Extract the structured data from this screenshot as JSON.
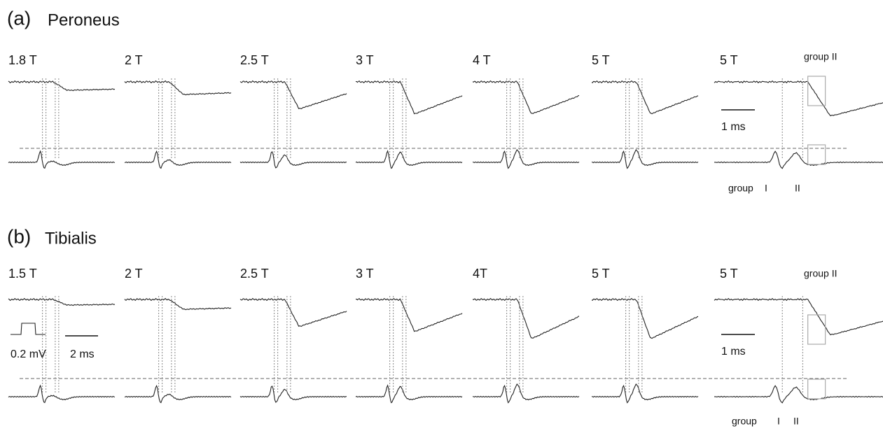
{
  "panels": [
    {
      "label": "(a)",
      "title": "Peroneus",
      "stimuli": [
        "1.8 T",
        "2 T",
        "2.5 T",
        "3 T",
        "4 T",
        "5 T",
        "5 T"
      ],
      "top_note": "group II",
      "scale_time": "1 ms",
      "group_labels": [
        "group",
        "I",
        "II"
      ]
    },
    {
      "label": "(b)",
      "title": "Tibialis",
      "stimuli": [
        "1.5 T",
        "2 T",
        "2.5 T",
        "3 T",
        "4T",
        "5 T",
        "5 T"
      ],
      "top_note": "group II",
      "scale_time": "1 ms",
      "group_labels": [
        "group",
        "I",
        "II"
      ],
      "calibration": {
        "amplitude": "0.2 mV",
        "time": "2 ms"
      }
    }
  ]
}
